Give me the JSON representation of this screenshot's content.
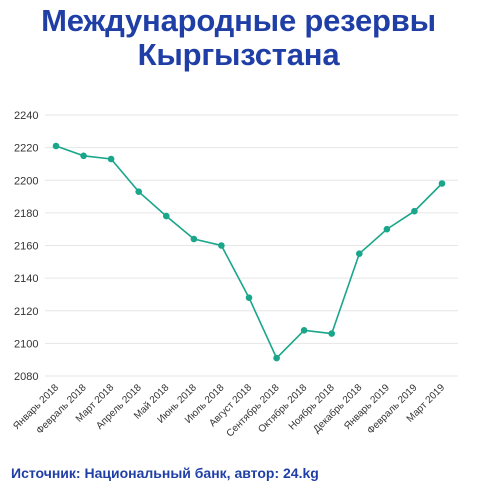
{
  "header": {
    "title_line1": "Международные резервы",
    "title_line2": "Кыргызстана"
  },
  "footer": {
    "source": "Источник: Национальный банк, автор: 24.kg"
  },
  "colors": {
    "title": "#1f3fa6",
    "line": "#1aa68a",
    "grid": "#e6e6e6"
  },
  "chart_data": {
    "type": "line",
    "title": "Международные резервы Кыргызстана",
    "xlabel": "",
    "ylabel": "",
    "ylim": [
      2080,
      2240
    ],
    "yticks": [
      2080,
      2100,
      2120,
      2140,
      2160,
      2180,
      2200,
      2220,
      2240
    ],
    "grid": true,
    "legend": "none",
    "categories": [
      "Январь 2018",
      "Февраль 2018",
      "Март 2018",
      "Апрель 2018",
      "Май 2018",
      "Июнь 2018",
      "Июль 2018",
      "Август 2018",
      "Сентябрь 2018",
      "Октябрь 2018",
      "Ноябрь 2018",
      "Декабрь 2018",
      "Январь 2019",
      "Февраль 2019",
      "Март 2019"
    ],
    "values": [
      2221,
      2215,
      2213,
      2193,
      2178,
      2164,
      2160,
      2128,
      2091,
      2108,
      2106,
      2155,
      2170,
      2181,
      2198
    ]
  }
}
